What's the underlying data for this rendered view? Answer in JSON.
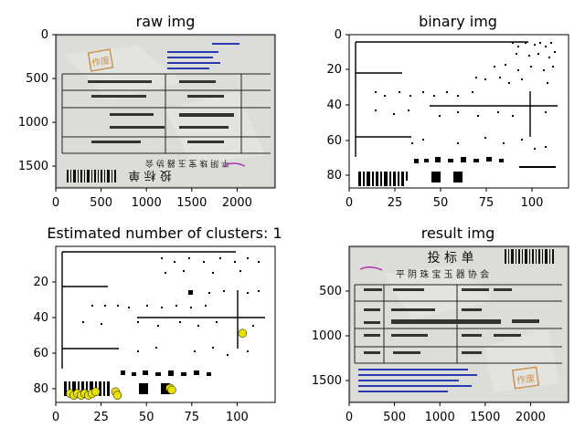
{
  "figure": {
    "panels": [
      {
        "title": "raw img",
        "xticks": [
          "0",
          "500",
          "1000",
          "1500",
          "2000"
        ],
        "yticks": [
          "0",
          "500",
          "1000",
          "1500"
        ],
        "content": "raw-document-photo"
      },
      {
        "title": "binary img",
        "xticks": [
          "0",
          "25",
          "50",
          "75",
          "100"
        ],
        "yticks": [
          "0",
          "20",
          "40",
          "60",
          "80"
        ],
        "content": "binary-document"
      },
      {
        "title": "Estimated number of clusters: 1",
        "xticks": [
          "0",
          "25",
          "50",
          "75",
          "100"
        ],
        "yticks": [
          "20",
          "40",
          "60",
          "80"
        ],
        "content": "binary-document-with-clusters"
      },
      {
        "title": "result img",
        "xticks": [
          "0",
          "500",
          "1000",
          "1500",
          "2000"
        ],
        "yticks": [
          "500",
          "1000",
          "1500"
        ],
        "content": "rotated-document-photo"
      }
    ],
    "document_text": {
      "header": "投 标 单",
      "org": "平 阴 珠 宝 玉 器 协 会",
      "stamp": "作废"
    }
  },
  "chart_data": [
    {
      "type": "image",
      "title": "raw img",
      "xlim": [
        0,
        2420
      ],
      "ylim": [
        1750,
        0
      ],
      "xticks": [
        0,
        500,
        1000,
        1500,
        2000
      ],
      "yticks": [
        0,
        500,
        1000,
        1500
      ]
    },
    {
      "type": "image",
      "title": "binary img",
      "xlim": [
        0,
        121
      ],
      "ylim": [
        88,
        0
      ],
      "xticks": [
        0,
        25,
        50,
        75,
        100
      ],
      "yticks": [
        0,
        20,
        40,
        60,
        80
      ]
    },
    {
      "type": "scatter",
      "title": "Estimated number of clusters: 1",
      "xlim": [
        0,
        121
      ],
      "ylim": [
        88,
        0
      ],
      "xticks": [
        0,
        25,
        50,
        75,
        100
      ],
      "yticks": [
        20,
        40,
        60,
        80
      ],
      "cluster_color": "#e8e000",
      "points": [
        {
          "x": 8,
          "y": 83
        },
        {
          "x": 10,
          "y": 84
        },
        {
          "x": 12,
          "y": 83
        },
        {
          "x": 14,
          "y": 84
        },
        {
          "x": 16,
          "y": 83
        },
        {
          "x": 18,
          "y": 84
        },
        {
          "x": 20,
          "y": 83
        },
        {
          "x": 22,
          "y": 82
        },
        {
          "x": 33,
          "y": 82
        },
        {
          "x": 34,
          "y": 84
        },
        {
          "x": 63,
          "y": 80
        },
        {
          "x": 64,
          "y": 81
        },
        {
          "x": 103,
          "y": 49
        }
      ]
    },
    {
      "type": "image",
      "title": "result img",
      "xlim": [
        0,
        2420
      ],
      "ylim": [
        1750,
        0
      ],
      "xticks": [
        0,
        500,
        1000,
        1500,
        2000
      ],
      "yticks": [
        500,
        1000,
        1500
      ]
    }
  ]
}
